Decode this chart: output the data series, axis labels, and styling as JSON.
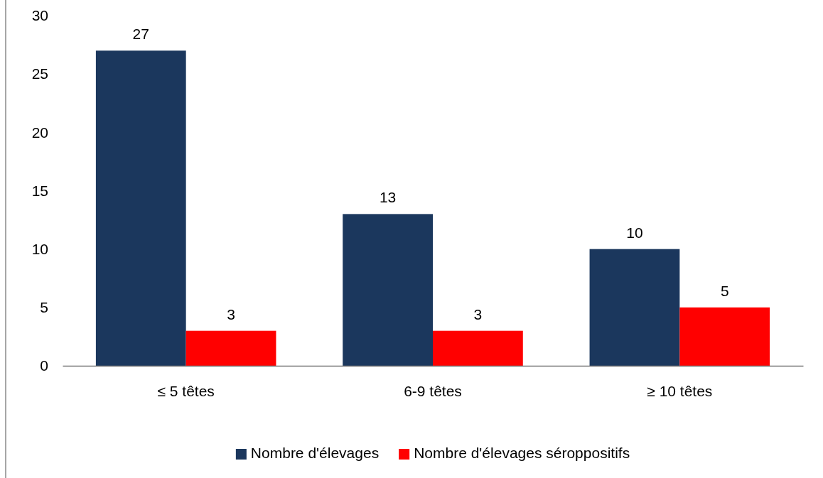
{
  "chart_data": {
    "type": "bar",
    "categories": [
      "≤ 5 têtes",
      "6-9 têtes",
      "≥ 10 têtes"
    ],
    "series": [
      {
        "name": "Nombre d'élevages",
        "color": "#1b375d",
        "values": [
          27,
          13,
          10
        ]
      },
      {
        "name": "Nombre d'élevages séroppositifs",
        "color": "#ff0000",
        "values": [
          3,
          3,
          5
        ]
      }
    ],
    "ylim": [
      0,
      30
    ],
    "yticks": [
      0,
      5,
      10,
      15,
      20,
      25,
      30
    ],
    "grid": false,
    "legend": "bottom",
    "data_labels": true
  }
}
